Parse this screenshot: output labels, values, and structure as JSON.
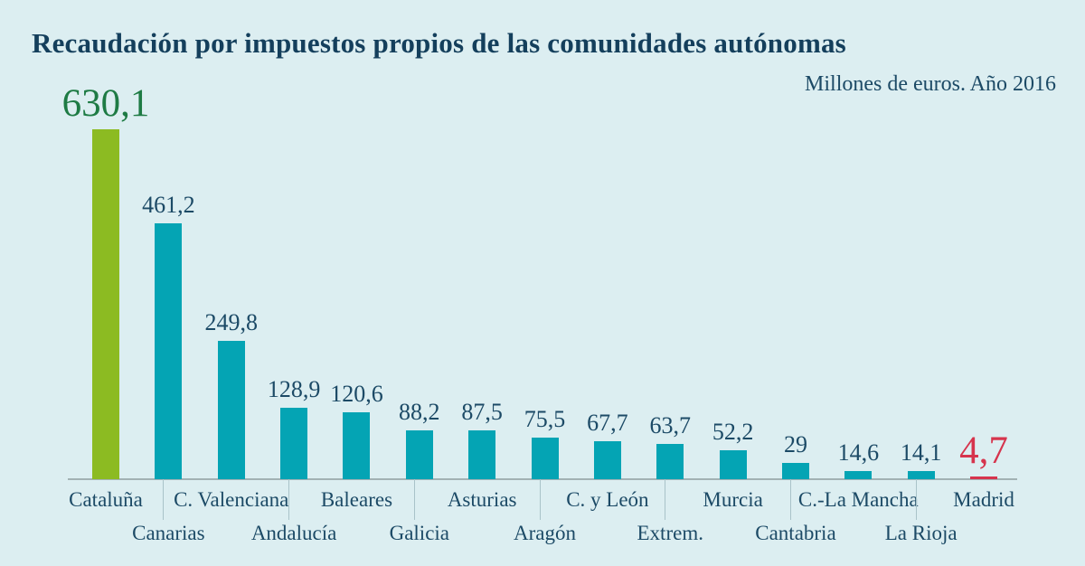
{
  "header": {
    "title": "Recaudación por impuestos propios de las comunidades autónomas",
    "subtitle": "Millones de euros. Año 2016"
  },
  "colors": {
    "background": "#dceef1",
    "bar_default": "#04a4b4",
    "bar_max": "#8cbb22",
    "bar_min": "#d6344d",
    "value_label_default": "#1c4a66",
    "value_label_max": "#1e7b44",
    "value_label_min": "#d6344d",
    "title_text": "#143f5c",
    "axis_line": "#a2b2b4",
    "divider_line": "#a9c3c9"
  },
  "chart_data": {
    "type": "bar",
    "title": "Recaudación por impuestos propios de las comunidades autónomas",
    "units_note": "Millones de euros. Año 2016",
    "categories": [
      "Cataluña",
      "Canarias",
      "C. Valenciana",
      "Andalucía",
      "Baleares",
      "Galicia",
      "Asturias",
      "Aragón",
      "C. y León",
      "Extrem.",
      "Murcia",
      "Cantabria",
      "C.-La Mancha",
      "La Rioja",
      "Madrid"
    ],
    "values": [
      630.1,
      461.2,
      249.8,
      128.9,
      120.6,
      88.2,
      87.5,
      75.5,
      67.7,
      63.7,
      52.2,
      29,
      14.6,
      14.1,
      4.7
    ],
    "value_labels": [
      "630,1",
      "461,2",
      "249,8",
      "128,9",
      "120,6",
      "88,2",
      "87,5",
      "75,5",
      "67,7",
      "63,7",
      "52,2",
      "29",
      "14,6",
      "14,1",
      "4,7"
    ],
    "highlighted_max_category": "Cataluña",
    "highlighted_min_category": "Madrid",
    "xlabel": "",
    "ylabel": "Millones de euros",
    "ylim": [
      0,
      650
    ],
    "grid": false,
    "legend": false
  }
}
